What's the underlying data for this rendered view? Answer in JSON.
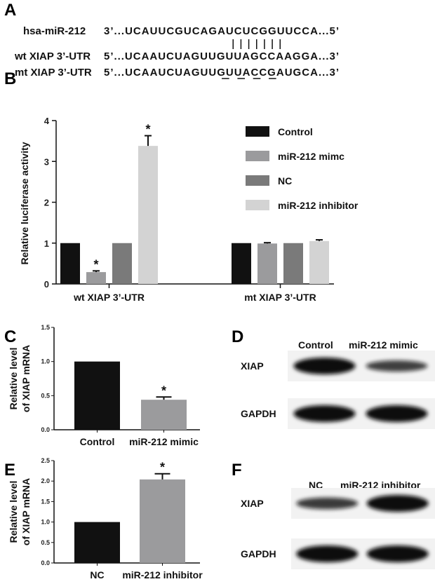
{
  "panels": {
    "A": "A",
    "B": "B",
    "C": "C",
    "D": "D",
    "E": "E",
    "F": "F"
  },
  "sequences": [
    {
      "name": "hsa-miR-212",
      "seq": "3’...UCAUUCGUCAGAUCUCGGUUCCA...5’"
    },
    {
      "name": "wt XIAP 3’-UTR",
      "seq": "5’...UCAAUCUAGUUGUUAGCCAAGGA...3’"
    },
    {
      "name": "mt XIAP 3’-UTR",
      "seq": "5’...UCAAUCUAGUUGUUACCGAUGCA...3’"
    }
  ],
  "colors": {
    "Control": "#111111",
    "miR-212 mimc": "#9b9b9d",
    "NC": "#7a7a7a",
    "miR-212 inhibitor": "#d3d3d3"
  },
  "chart_data": [
    {
      "type": "bar",
      "id": "B",
      "categories": [
        "wt XIAP 3’-UTR",
        "mt XIAP 3’-UTR"
      ],
      "series": [
        {
          "name": "Control",
          "values": [
            1.0,
            1.0
          ],
          "errors": [
            0,
            0
          ],
          "sig": [
            false,
            false
          ]
        },
        {
          "name": "miR-212 mimc",
          "values": [
            0.29,
            0.99
          ],
          "errors": [
            0.03,
            0.02
          ],
          "sig": [
            true,
            false
          ]
        },
        {
          "name": "NC",
          "values": [
            1.0,
            1.0
          ],
          "errors": [
            0,
            0
          ],
          "sig": [
            false,
            false
          ]
        },
        {
          "name": "miR-212 inhibitor",
          "values": [
            3.38,
            1.05
          ],
          "errors": [
            0.25,
            0.03
          ],
          "sig": [
            true,
            false
          ]
        }
      ],
      "ylabel": "Relative luciferase activity",
      "ylim": [
        0,
        4
      ],
      "yticks": [
        "0",
        "1",
        "2",
        "3",
        "4"
      ],
      "legend": "top-right",
      "annotation": "*"
    },
    {
      "type": "bar",
      "id": "C",
      "categories": [
        "Control",
        "miR-212 mimic"
      ],
      "values": [
        1.0,
        0.44
      ],
      "errors": [
        0,
        0.04
      ],
      "sig": [
        false,
        true
      ],
      "ylabel": [
        "Relative level",
        "of XIAP mRNA"
      ],
      "ylim": [
        0,
        1.5
      ],
      "yticks": [
        "0.0",
        "0.5",
        "1.0",
        "1.5"
      ],
      "annotation": "*"
    },
    {
      "type": "bar",
      "id": "E",
      "categories": [
        "NC",
        "miR-212 inhibitor"
      ],
      "values": [
        1.0,
        2.04
      ],
      "errors": [
        0,
        0.14
      ],
      "sig": [
        false,
        true
      ],
      "ylabel": [
        "Relative level",
        "of XIAP mRNA"
      ],
      "ylim": [
        0,
        2.5
      ],
      "yticks": [
        "0.0",
        "0.5",
        "1.0",
        "1.5",
        "2.0",
        "2.5"
      ],
      "annotation": "*"
    }
  ],
  "blots": {
    "D": {
      "lanes": [
        "Control",
        "miR-212 mimic"
      ],
      "rows": [
        "XIAP",
        "GAPDH"
      ],
      "intensity": [
        [
          1.0,
          0.55
        ],
        [
          1.0,
          1.0
        ]
      ]
    },
    "F": {
      "lanes": [
        "NC",
        "miR-212 inhibitor"
      ],
      "rows": [
        "XIAP",
        "GAPDH"
      ],
      "intensity": [
        [
          0.6,
          1.0
        ],
        [
          1.0,
          1.0
        ]
      ]
    }
  }
}
